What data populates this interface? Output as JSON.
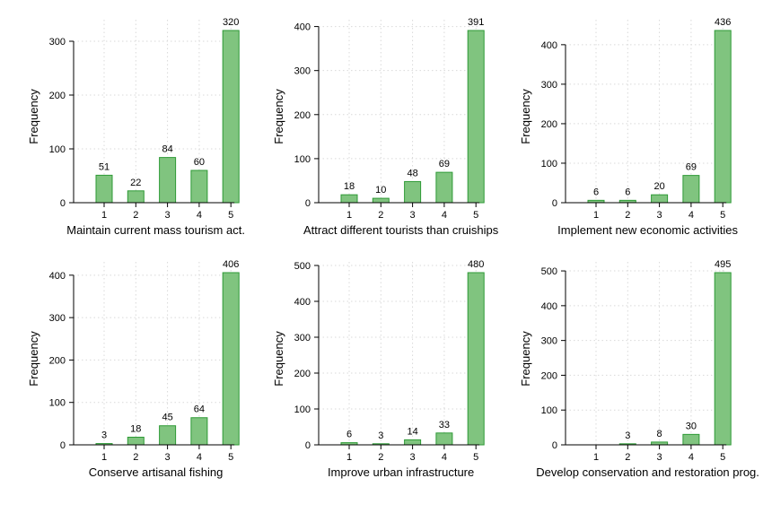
{
  "style": {
    "bar_fill": "#80c47f",
    "bar_stroke": "#2e9a36",
    "axis_color": "#000000",
    "grid_color": "#d9d9d9",
    "grid": "dotted"
  },
  "chart_data": [
    {
      "type": "bar",
      "categories": [
        "1",
        "2",
        "3",
        "4",
        "5"
      ],
      "values": [
        51,
        22,
        84,
        60,
        320
      ],
      "data_labels": [
        "51",
        "22",
        "84",
        "60",
        "320"
      ],
      "xlabel": "Maintain current mass tourism act.",
      "ylabel": "Frequency",
      "ylim": [
        0,
        320
      ],
      "yticks": [
        0,
        100,
        200,
        300
      ],
      "ytick_labels": [
        "0",
        "100",
        "200",
        "300"
      ],
      "grid": true
    },
    {
      "type": "bar",
      "categories": [
        "1",
        "2",
        "3",
        "4",
        "5"
      ],
      "values": [
        18,
        10,
        48,
        69,
        391
      ],
      "data_labels": [
        "18",
        "10",
        "48",
        "69",
        "391"
      ],
      "xlabel": "Attract different tourists than cruiships",
      "ylabel": "Frequency",
      "ylim": [
        0,
        391
      ],
      "yticks": [
        0,
        100,
        200,
        300,
        400
      ],
      "ytick_labels": [
        "0",
        "100",
        "200",
        "300",
        "400"
      ],
      "grid": true
    },
    {
      "type": "bar",
      "categories": [
        "1",
        "2",
        "3",
        "4",
        "5"
      ],
      "values": [
        6,
        6,
        20,
        69,
        436
      ],
      "data_labels": [
        "6",
        "6",
        "20",
        "69",
        "436"
      ],
      "xlabel": "Implement new economic activities",
      "ylabel": "Frequency",
      "ylim": [
        0,
        436
      ],
      "yticks": [
        0,
        100,
        200,
        300,
        400
      ],
      "ytick_labels": [
        "0",
        "100",
        "200",
        "300",
        "400"
      ],
      "grid": true
    },
    {
      "type": "bar",
      "categories": [
        "1",
        "2",
        "3",
        "4",
        "5"
      ],
      "values": [
        3,
        18,
        45,
        64,
        406
      ],
      "data_labels": [
        "3",
        "18",
        "45",
        "64",
        "406"
      ],
      "xlabel": "Conserve artisanal fishing",
      "ylabel": "Frequency",
      "ylim": [
        0,
        406
      ],
      "yticks": [
        0,
        100,
        200,
        300,
        400
      ],
      "ytick_labels": [
        "0",
        "100",
        "200",
        "300",
        "400"
      ],
      "grid": true
    },
    {
      "type": "bar",
      "categories": [
        "1",
        "2",
        "3",
        "4",
        "5"
      ],
      "values": [
        6,
        3,
        14,
        33,
        480
      ],
      "data_labels": [
        "6",
        "3",
        "14",
        "33",
        "480"
      ],
      "xlabel": "Improve urban infrastructure",
      "ylabel": "Frequency",
      "ylim": [
        0,
        480
      ],
      "yticks": [
        0,
        100,
        200,
        300,
        400,
        500
      ],
      "ytick_labels": [
        "0",
        "100",
        "200",
        "300",
        "400",
        "500"
      ],
      "grid": true
    },
    {
      "type": "bar",
      "categories": [
        "1",
        "2",
        "3",
        "4",
        "5"
      ],
      "values": [
        0,
        3,
        8,
        30,
        495
      ],
      "data_labels": [
        "",
        "3",
        "8",
        "30",
        "495"
      ],
      "xlabel": "Develop conservation and restoration prog.",
      "ylabel": "Frequency",
      "ylim": [
        0,
        495
      ],
      "yticks": [
        0,
        100,
        200,
        300,
        400,
        500
      ],
      "ytick_labels": [
        "0",
        "100",
        "200",
        "300",
        "400",
        "500"
      ],
      "grid": true
    }
  ]
}
